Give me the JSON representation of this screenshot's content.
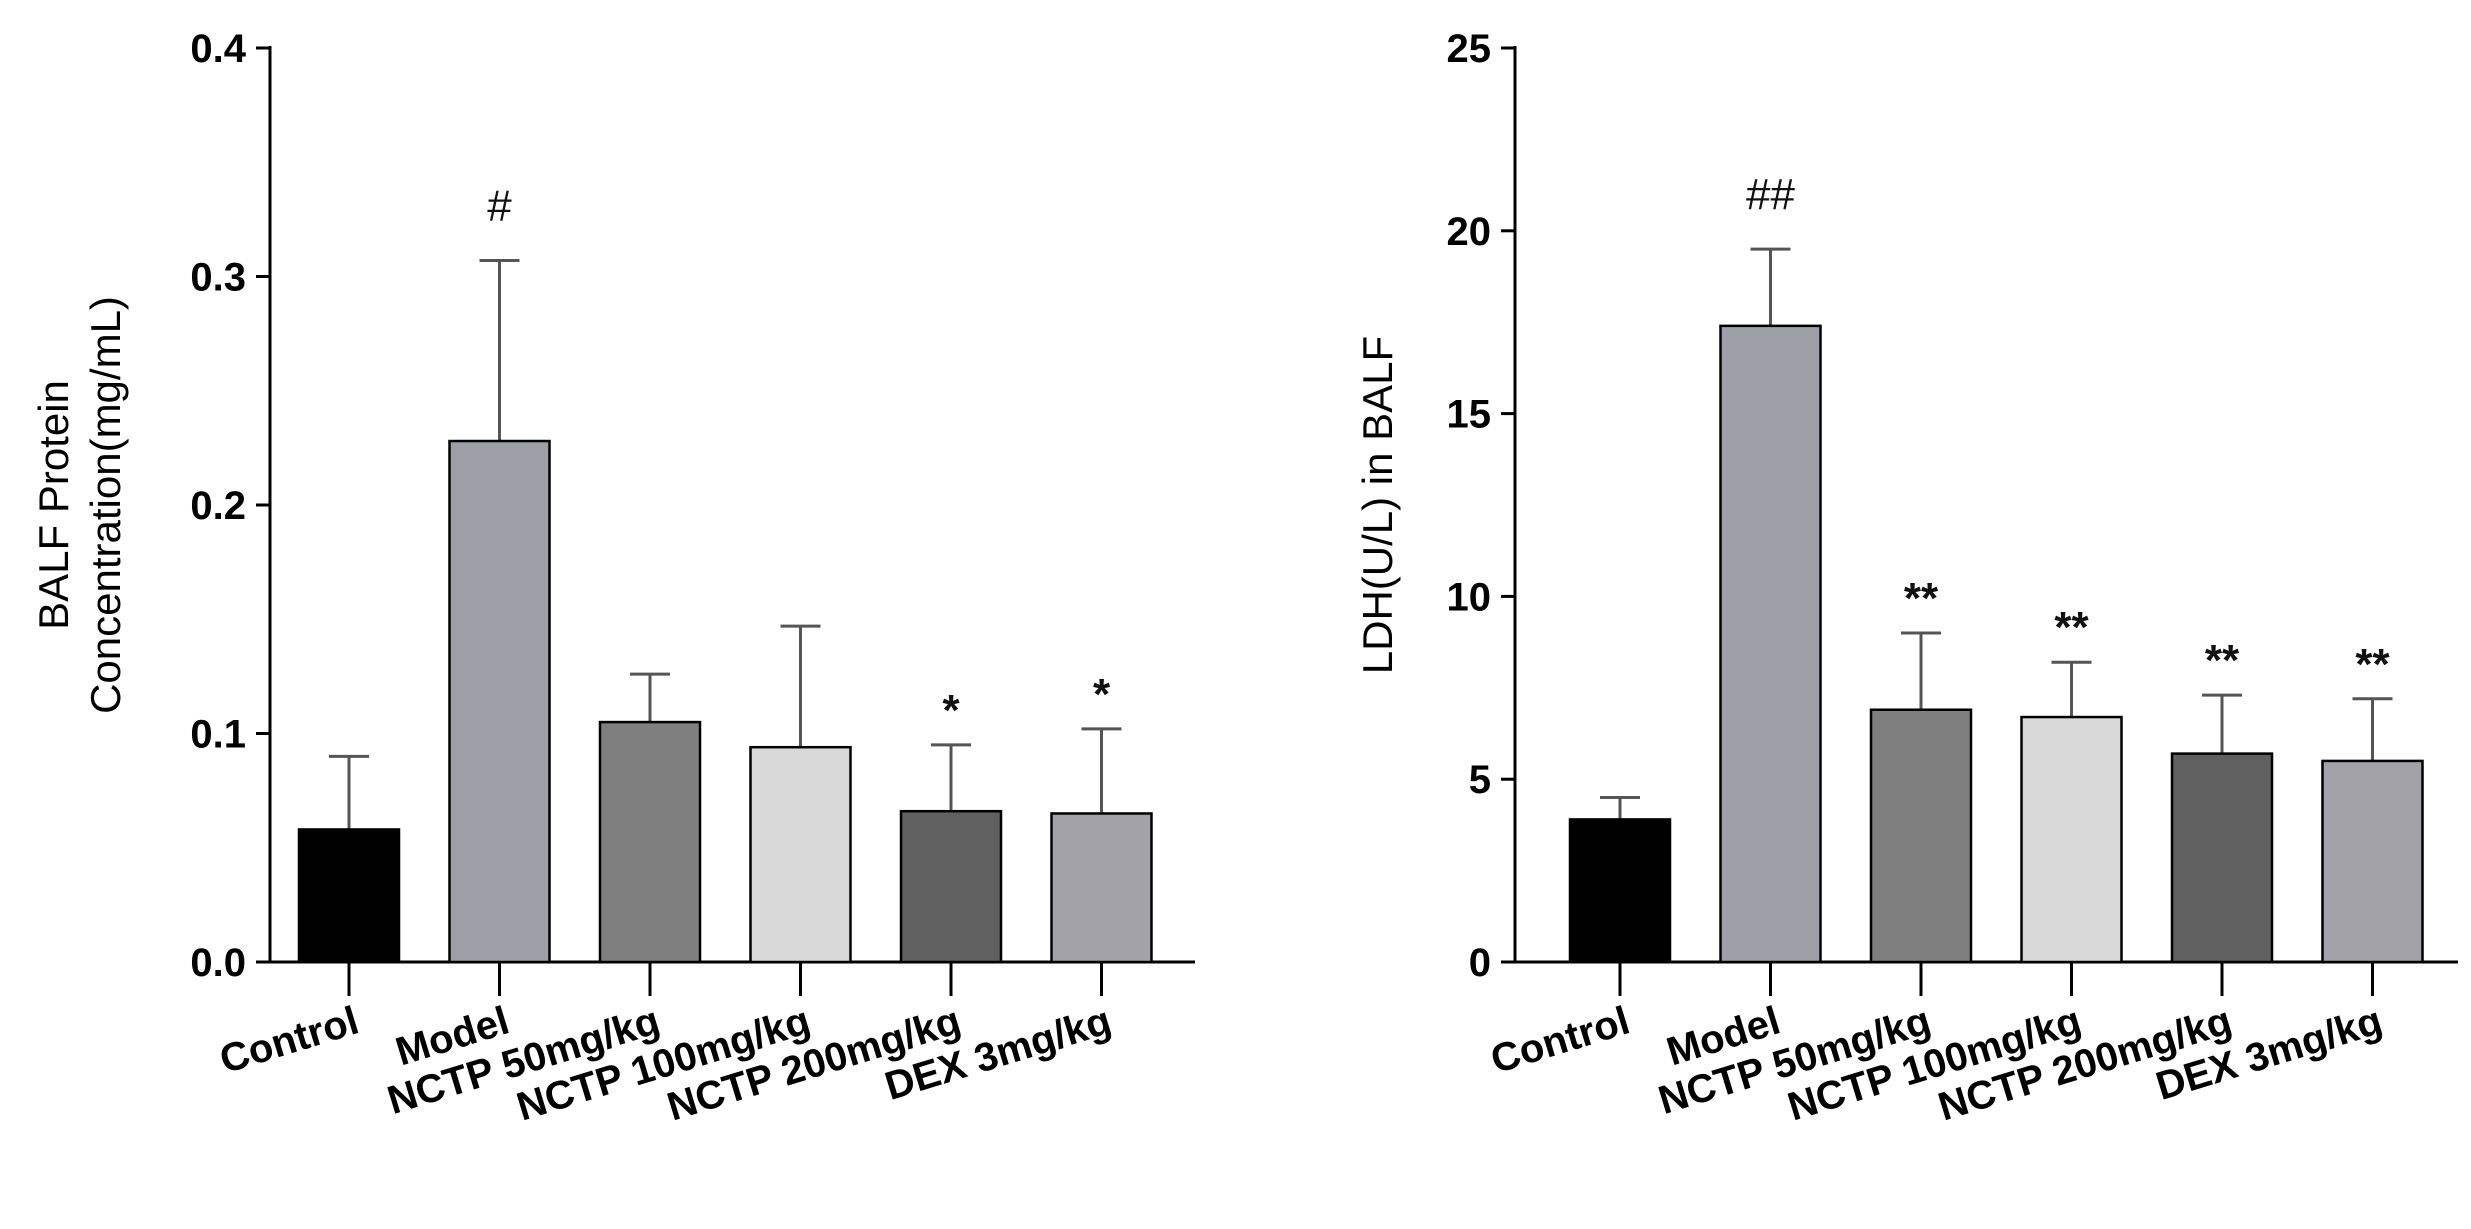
{
  "chart_data": [
    {
      "type": "bar",
      "ylabel_lines": [
        "BALF Protein",
        "Concentration(mg/mL)"
      ],
      "xlabel": "",
      "ylim": [
        0,
        0.4
      ],
      "yticks": [
        0.0,
        0.1,
        0.2,
        0.3,
        0.4
      ],
      "ytick_labels": [
        "0.0",
        "0.1",
        "0.2",
        "0.3",
        "0.4"
      ],
      "categories": [
        "Control",
        "Model",
        "NCTP 50mg/kg",
        "NCTP 100mg/kg",
        "NCTP 200mg/kg",
        "DEX 3mg/kg"
      ],
      "values": [
        0.058,
        0.228,
        0.105,
        0.094,
        0.066,
        0.065
      ],
      "errors": [
        0.032,
        0.079,
        0.021,
        0.053,
        0.029,
        0.037
      ],
      "significance": [
        "",
        "#",
        "",
        "",
        "*",
        "*"
      ],
      "colors": [
        "#000000",
        "#9e9ea6",
        "#7f7f7f",
        "#d9d9d9",
        "#606060",
        "#a2a2a8"
      ]
    },
    {
      "type": "bar",
      "ylabel": "LDH(U/L) in BALF",
      "xlabel": "",
      "ylim": [
        0,
        25
      ],
      "yticks": [
        0,
        5,
        10,
        15,
        20,
        25
      ],
      "ytick_labels": [
        "0",
        "5",
        "10",
        "15",
        "20",
        "25"
      ],
      "categories": [
        "Control",
        "Model",
        "NCTP 50mg/kg",
        "NCTP 100mg/kg",
        "NCTP 200mg/kg",
        "DEX 3mg/kg"
      ],
      "values": [
        3.9,
        17.4,
        6.9,
        6.7,
        5.7,
        5.5
      ],
      "errors": [
        0.6,
        2.1,
        2.1,
        1.5,
        1.6,
        1.7
      ],
      "significance": [
        "",
        "##",
        "**",
        "**",
        "**",
        "**"
      ],
      "colors": [
        "#000000",
        "#9e9ea6",
        "#7f7f7f",
        "#d9d9d9",
        "#606060",
        "#a2a2a8"
      ]
    }
  ]
}
